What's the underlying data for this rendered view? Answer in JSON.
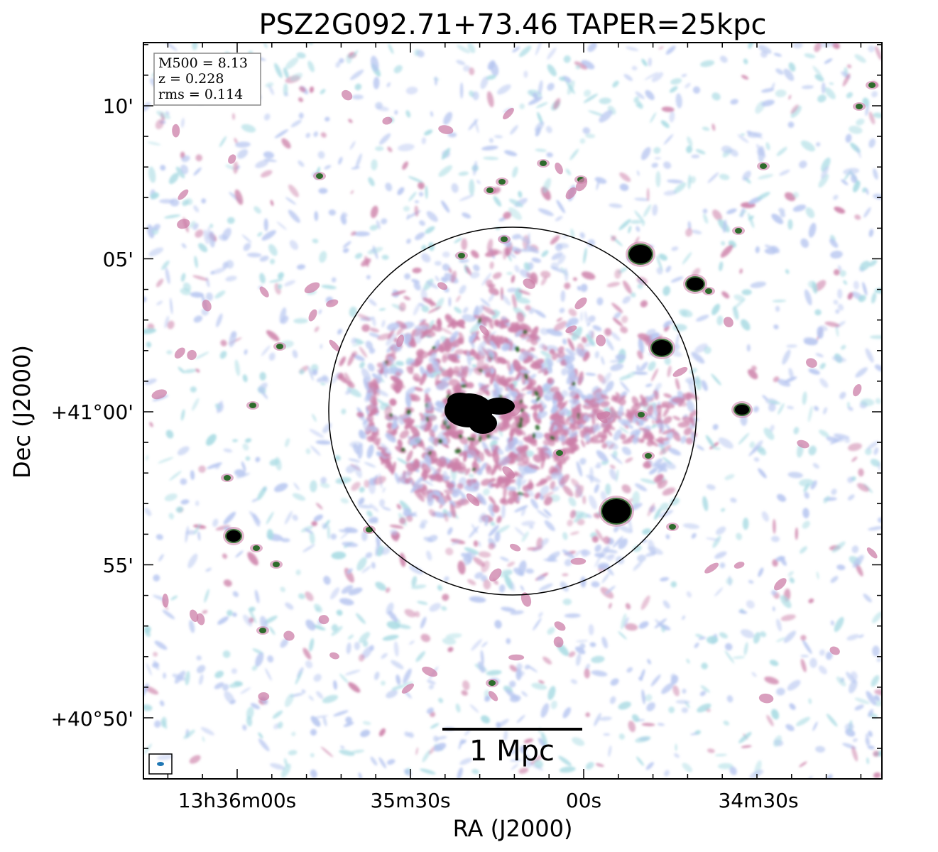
{
  "title": "PSZ2G092.71+73.46 TAPER=25kpc",
  "info_box": {
    "m500": "M500 = 8.13",
    "z": "z = 0.228",
    "rms": "rms = 0.114"
  },
  "axes": {
    "xlabel": "RA (J2000)",
    "ylabel": "Dec (J2000)",
    "xticks": [
      "13h36m00s",
      "35m30s",
      "00s",
      "34m30s"
    ],
    "yticks": [
      "10'",
      "05'",
      "+41°00'",
      "55'",
      "+40°50'"
    ]
  },
  "scale_bar": {
    "label": "1 Mpc"
  },
  "colors": {
    "faint": "#b7c6f0",
    "faint_alt": "#a9dbe3",
    "mid": "#cc7fa8",
    "bright": "#2e6b2c",
    "core": "#000000",
    "beam": "#1f77b4"
  }
}
